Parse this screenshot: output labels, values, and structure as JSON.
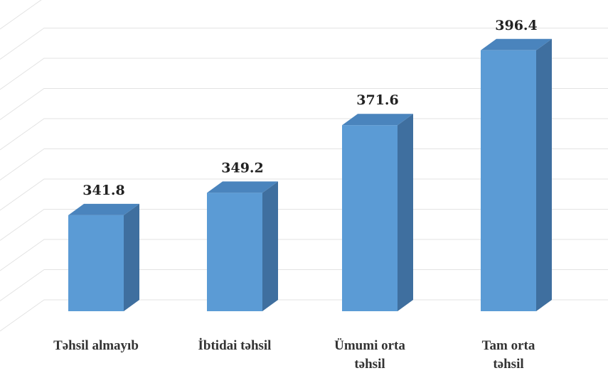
{
  "chart_data": {
    "type": "bar3d",
    "categories": [
      "Təhsil almayıb",
      "İbtidai təhsil",
      "Ümumi orta təhsil",
      "Tam orta təhsil"
    ],
    "values": [
      341.8,
      349.2,
      371.6,
      396.4
    ],
    "color": "#5b9bd5",
    "ylim": [
      310,
      410
    ],
    "yticks": [
      310,
      320,
      330,
      340,
      350,
      360,
      370,
      380,
      390,
      400,
      410
    ],
    "grid": true
  }
}
